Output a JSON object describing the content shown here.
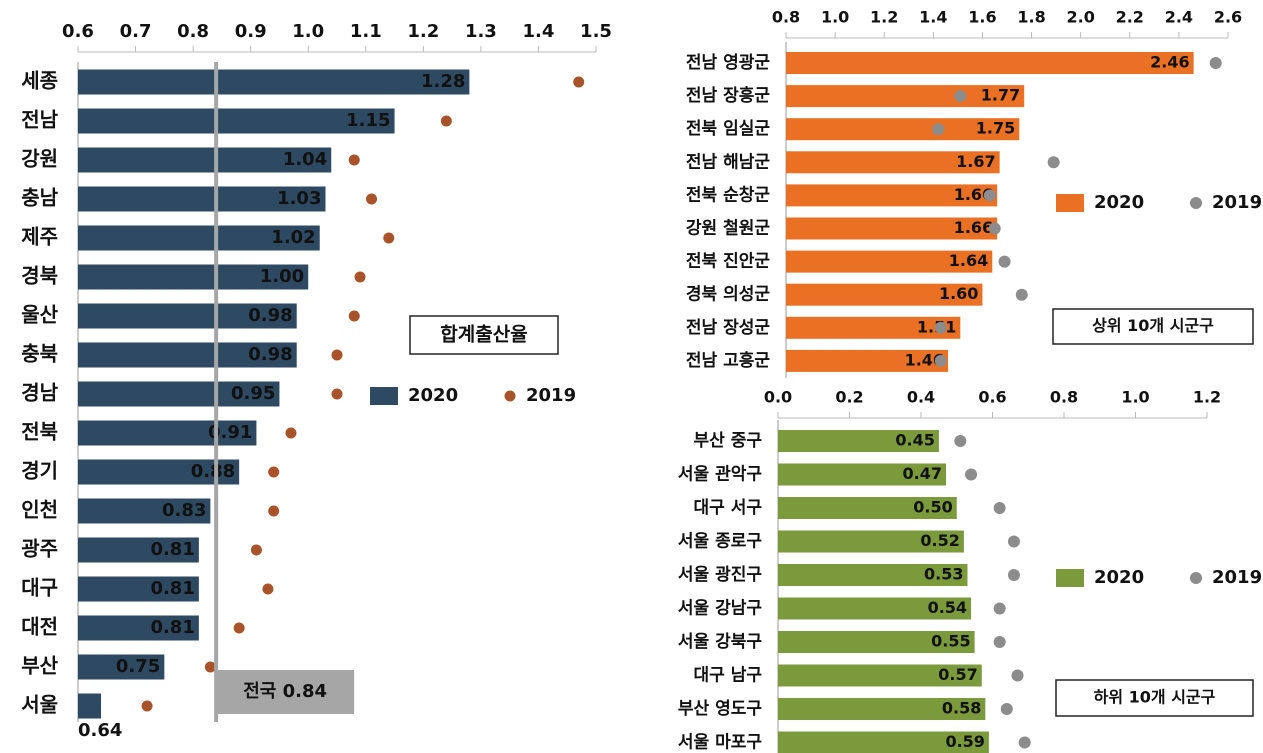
{
  "chart_data": [
    {
      "type": "bar",
      "annotation": "합계출산율",
      "reference": {
        "value": 0.84,
        "label": "전국 0.84"
      },
      "categories": [
        "세종",
        "전남",
        "강원",
        "충남",
        "제주",
        "경북",
        "울산",
        "충북",
        "경남",
        "전북",
        "경기",
        "인천",
        "광주",
        "대구",
        "대전",
        "부산",
        "서울"
      ],
      "series": [
        {
          "name": "2020",
          "color": "#2e4a62",
          "values": [
            1.28,
            1.15,
            1.04,
            1.03,
            1.02,
            1.0,
            0.98,
            0.98,
            0.95,
            0.91,
            0.88,
            0.83,
            0.81,
            0.81,
            0.81,
            0.75,
            0.64
          ],
          "value_labels": [
            "1.28",
            "1.15",
            "1.04",
            "1.03",
            "1.02",
            "1.00",
            "0.98",
            "0.98",
            "0.95",
            "0.91",
            "0.88",
            "0.83",
            "0.81",
            "0.81",
            "0.81",
            "0.75",
            "0.64"
          ]
        },
        {
          "name": "2019",
          "color": "#a9532a",
          "values": [
            1.47,
            1.24,
            1.08,
            1.11,
            1.14,
            1.09,
            1.08,
            1.05,
            1.05,
            0.97,
            0.94,
            0.94,
            0.91,
            0.93,
            0.88,
            0.83,
            0.72
          ]
        }
      ],
      "xlim": [
        0.6,
        1.5
      ],
      "xticks": [
        {
          "value": 0.6,
          "label": "0.6"
        },
        {
          "value": 0.7,
          "label": "0.7"
        },
        {
          "value": 0.8,
          "label": "0.8"
        },
        {
          "value": 0.9,
          "label": "0.9"
        },
        {
          "value": 1.0,
          "label": "1.0"
        },
        {
          "value": 1.1,
          "label": "1.1"
        },
        {
          "value": 1.2,
          "label": "1.2"
        },
        {
          "value": 1.3,
          "label": "1.3"
        },
        {
          "value": 1.4,
          "label": "1.4"
        },
        {
          "value": 1.5,
          "label": "1.5"
        }
      ]
    },
    {
      "type": "bar",
      "annotation": "상위 10개 시군구",
      "categories": [
        "전남 영광군",
        "전남 장흥군",
        "전북 임실군",
        "전남 해남군",
        "전북 순창군",
        "강원 철원군",
        "전북 진안군",
        "경북 의성군",
        "전남 장성군",
        "전남 고흥군"
      ],
      "series": [
        {
          "name": "2020",
          "color": "#ea7024",
          "values": [
            2.46,
            1.77,
            1.75,
            1.67,
            1.66,
            1.66,
            1.64,
            1.6,
            1.51,
            1.46
          ],
          "value_labels": [
            "2.46",
            "1.77",
            "1.75",
            "1.67",
            "1.66",
            "1.66",
            "1.64",
            "1.60",
            "1.51",
            "1.46"
          ]
        },
        {
          "name": "2019",
          "color": "#8c8c8c",
          "values": [
            2.55,
            1.51,
            1.42,
            1.89,
            1.63,
            1.65,
            1.69,
            1.76,
            1.43,
            1.43
          ]
        }
      ],
      "xlim": [
        0.8,
        2.6
      ],
      "xticks": [
        {
          "value": 0.8,
          "label": "0.8"
        },
        {
          "value": 1.0,
          "label": "1.0"
        },
        {
          "value": 1.2,
          "label": "1.2"
        },
        {
          "value": 1.4,
          "label": "1.4"
        },
        {
          "value": 1.6,
          "label": "1.6"
        },
        {
          "value": 1.8,
          "label": "1.8"
        },
        {
          "value": 2.0,
          "label": "2.0"
        },
        {
          "value": 2.2,
          "label": "2.2"
        },
        {
          "value": 2.4,
          "label": "2.4"
        },
        {
          "value": 2.6,
          "label": "2.6"
        }
      ]
    },
    {
      "type": "bar",
      "annotation": "하위 10개 시군구",
      "categories": [
        "부산 중구",
        "서울 관악구",
        "대구 서구",
        "서울 종로구",
        "서울 광진구",
        "서울 강남구",
        "서울 강북구",
        "대구 남구",
        "부산 영도구",
        "서울 마포구"
      ],
      "series": [
        {
          "name": "2020",
          "color": "#7a9a3c",
          "values": [
            0.45,
            0.47,
            0.5,
            0.52,
            0.53,
            0.54,
            0.55,
            0.57,
            0.58,
            0.59
          ],
          "value_labels": [
            "0.45",
            "0.47",
            "0.50",
            "0.52",
            "0.53",
            "0.54",
            "0.55",
            "0.57",
            "0.58",
            "0.59"
          ]
        },
        {
          "name": "2019",
          "color": "#8c8c8c",
          "values": [
            0.51,
            0.54,
            0.62,
            0.66,
            0.66,
            0.62,
            0.62,
            0.67,
            0.64,
            0.69
          ]
        }
      ],
      "xlim": [
        0.0,
        1.2
      ],
      "xticks": [
        {
          "value": 0.0,
          "label": "0.0"
        },
        {
          "value": 0.2,
          "label": "0.2"
        },
        {
          "value": 0.4,
          "label": "0.4"
        },
        {
          "value": 0.6,
          "label": "0.6"
        },
        {
          "value": 0.8,
          "label": "0.8"
        },
        {
          "value": 1.0,
          "label": "1.0"
        },
        {
          "value": 1.2,
          "label": "1.2"
        }
      ]
    }
  ]
}
